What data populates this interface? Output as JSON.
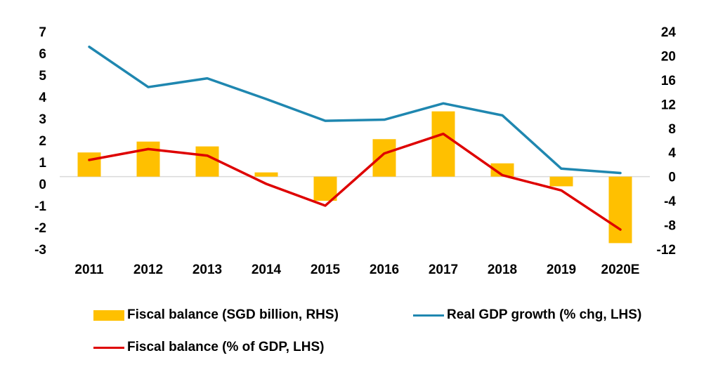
{
  "chart_data": {
    "type": "bar+line",
    "categories": [
      "2011",
      "2012",
      "2013",
      "2014",
      "2015",
      "2016",
      "2017",
      "2018",
      "2019",
      "2020E"
    ],
    "series": [
      {
        "name": "Fiscal balance (SGD billion, RHS)",
        "type": "bar",
        "axis": "right",
        "color": "#FFC000",
        "values": [
          4.0,
          5.8,
          5.0,
          0.7,
          -4.0,
          6.2,
          10.8,
          2.2,
          -1.6,
          -11.0
        ]
      },
      {
        "name": "Real GDP growth (% chg, LHS)",
        "type": "line",
        "axis": "left",
        "color": "#1F87B0",
        "values": [
          6.3,
          4.45,
          4.85,
          3.9,
          2.9,
          2.95,
          3.7,
          3.15,
          0.7,
          0.5
        ]
      },
      {
        "name": "Fiscal balance (% of GDP, LHS)",
        "type": "line",
        "axis": "left",
        "color": "#DE0000",
        "values": [
          1.1,
          1.6,
          1.3,
          0.0,
          -1.0,
          1.4,
          2.3,
          0.4,
          -0.3,
          -2.1
        ]
      }
    ],
    "left_axis": {
      "min": -3,
      "max": 7,
      "ticks": [
        "-3",
        "-2",
        "-1",
        "0",
        "1",
        "2",
        "3",
        "4",
        "5",
        "6",
        "7"
      ]
    },
    "right_axis": {
      "min": -12,
      "max": 24,
      "ticks": [
        "-12",
        "-8",
        "-4",
        "0",
        "4",
        "8",
        "12",
        "16",
        "20",
        "24"
      ]
    },
    "grid": false,
    "legend": {
      "items": [
        {
          "label": "Fiscal balance (SGD billion, RHS)",
          "kind": "bar",
          "color": "#FFC000"
        },
        {
          "label": "Real GDP growth (% chg, LHS)",
          "kind": "line",
          "color": "#1F87B0"
        },
        {
          "label": "Fiscal balance (% of GDP, LHS)",
          "kind": "line",
          "color": "#DE0000"
        }
      ],
      "placement": "bottom"
    }
  }
}
